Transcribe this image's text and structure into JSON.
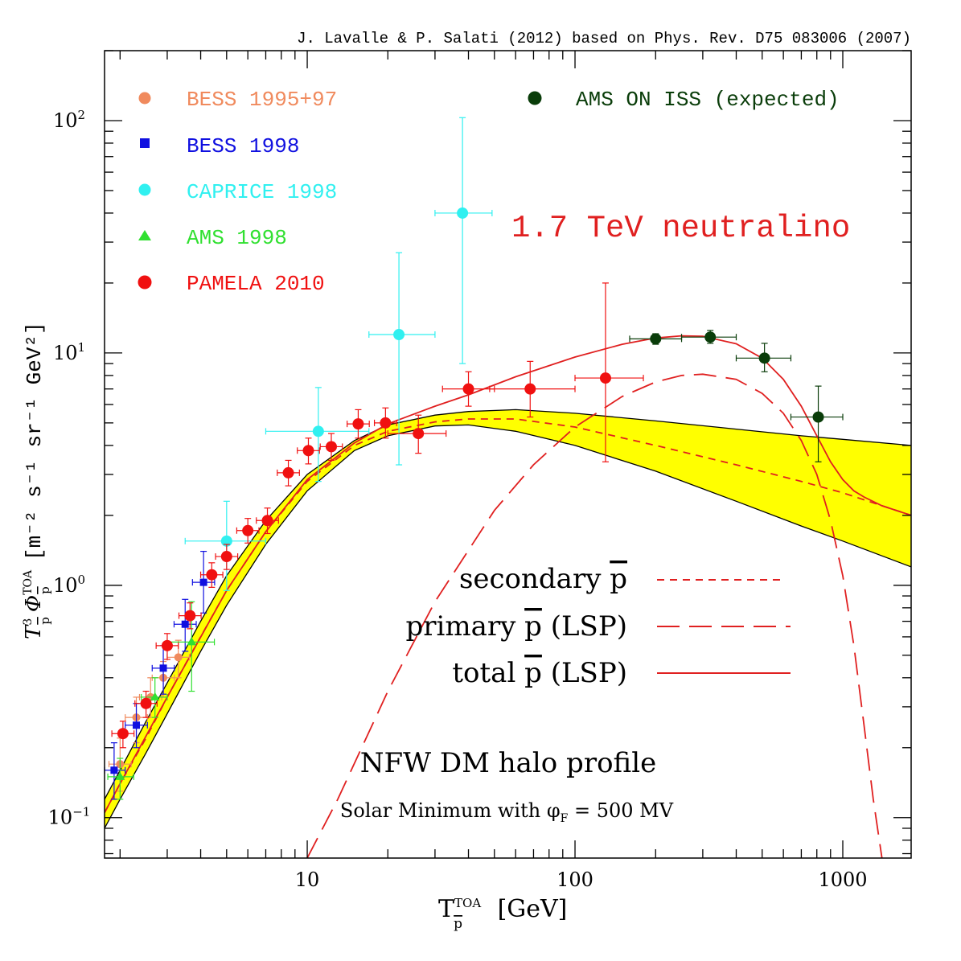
{
  "chart_data": {
    "type": "scatter",
    "citation": "J. Lavalle & P. Salati (2012) based on Phys. Rev. D75 083006 (2007)",
    "annotation_model": "1.7 TeV neutralino",
    "annotation_halo": "NFW DM halo profile",
    "annotation_solar": "Solar Minimum with φ",
    "annotation_solar_sub": "F",
    "annotation_solar_value": "= 500 MV",
    "xlabel": "[GeV]",
    "xlabel_symbol": "T",
    "xlabel_sup": "TOA",
    "xlabel_sub": "p",
    "ylabel": "[m⁻² s⁻¹ sr⁻¹ GeV²]",
    "ylabel_symbol": "T",
    "ylabel_sup": "3",
    "ylabel_sub": "p",
    "ylabel_phi": "Φ",
    "ylabel_phi_sup": "TOA",
    "ylabel_phi_sub": "p",
    "x_scale": "log",
    "y_scale": "log",
    "xlim": [
      1.75,
      1800
    ],
    "ylim": [
      0.067,
      200
    ],
    "x_tick_labels": [
      {
        "value": 10,
        "label": "10"
      },
      {
        "value": 100,
        "label": "100"
      },
      {
        "value": 1000,
        "label": "1000"
      }
    ],
    "y_tick_labels": [
      {
        "value": 0.1,
        "base": "10",
        "exp": "−1"
      },
      {
        "value": 1,
        "base": "10",
        "exp": "0"
      },
      {
        "value": 10,
        "base": "10",
        "exp": "1"
      },
      {
        "value": 100,
        "base": "10",
        "exp": "2"
      }
    ],
    "legend_position": "top-left and top-right",
    "line_legend": [
      {
        "label": "secondary",
        "suffix": "",
        "style": "short-dash"
      },
      {
        "label": "primary",
        "suffix": "(LSP)",
        "style": "long-dash"
      },
      {
        "label": "total",
        "suffix": "(LSP)",
        "style": "solid"
      }
    ],
    "line_legend_pbar": "p",
    "datasets": [
      {
        "name": "BESS 1995+97",
        "color": "#f08a5d",
        "marker": "circle",
        "points": [
          {
            "x": 2.0,
            "y": 0.17,
            "ylo": 0.13,
            "yhi": 0.22
          },
          {
            "x": 2.3,
            "y": 0.27,
            "ylo": 0.21,
            "yhi": 0.33
          },
          {
            "x": 2.6,
            "y": 0.33,
            "ylo": 0.27,
            "yhi": 0.4
          },
          {
            "x": 2.9,
            "y": 0.4,
            "ylo": 0.33,
            "yhi": 0.47
          },
          {
            "x": 3.3,
            "y": 0.49,
            "ylo": 0.4,
            "yhi": 0.58
          }
        ]
      },
      {
        "name": "BESS 1998",
        "color": "#1010e0",
        "marker": "square",
        "points": [
          {
            "x": 1.9,
            "y": 0.16,
            "ylo": 0.12,
            "yhi": 0.21
          },
          {
            "x": 2.3,
            "y": 0.25,
            "ylo": 0.2,
            "yhi": 0.31
          },
          {
            "x": 2.9,
            "y": 0.44,
            "ylo": 0.34,
            "yhi": 0.55
          },
          {
            "x": 3.5,
            "y": 0.68,
            "ylo": 0.52,
            "yhi": 0.87
          },
          {
            "x": 4.1,
            "y": 1.03,
            "ylo": 0.76,
            "yhi": 1.4
          }
        ]
      },
      {
        "name": "CAPRICE 1998",
        "color": "#30f0f0",
        "marker": "circle",
        "points": [
          {
            "x": 5.0,
            "y": 1.55,
            "ylo": 0.95,
            "yhi": 2.3,
            "xlo": 3.5,
            "xhi": 7.0
          },
          {
            "x": 11.0,
            "y": 4.6,
            "ylo": 2.8,
            "yhi": 7.1,
            "xlo": 7.0,
            "xhi": 17.0
          },
          {
            "x": 22.0,
            "y": 12.0,
            "ylo": 3.3,
            "yhi": 27.0,
            "xlo": 17.0,
            "xhi": 30.0
          },
          {
            "x": 38.0,
            "y": 40.0,
            "ylo": 9.0,
            "yhi": 103.0,
            "xlo": 30.0,
            "xhi": 49.0
          }
        ]
      },
      {
        "name": "AMS 1998",
        "color": "#30e030",
        "marker": "triangle",
        "points": [
          {
            "x": 2.0,
            "y": 0.15,
            "ylo": 0.12,
            "yhi": 0.18,
            "xlo": 1.8,
            "xhi": 2.25
          },
          {
            "x": 2.7,
            "y": 0.33,
            "ylo": 0.27,
            "yhi": 0.4,
            "xlo": 2.4,
            "xhi": 3.0
          },
          {
            "x": 3.7,
            "y": 0.57,
            "ylo": 0.35,
            "yhi": 0.85,
            "xlo": 3.0,
            "xhi": 4.5
          }
        ]
      },
      {
        "name": "PAMELA 2010",
        "color": "#f01010",
        "marker": "circle",
        "points": [
          {
            "x": 2.05,
            "y": 0.23,
            "ylo": 0.2,
            "yhi": 0.26
          },
          {
            "x": 2.5,
            "y": 0.31,
            "ylo": 0.27,
            "yhi": 0.35
          },
          {
            "x": 3.0,
            "y": 0.55,
            "ylo": 0.48,
            "yhi": 0.62
          },
          {
            "x": 3.65,
            "y": 0.74,
            "ylo": 0.65,
            "yhi": 0.84
          },
          {
            "x": 4.4,
            "y": 1.11,
            "ylo": 0.98,
            "yhi": 1.25
          },
          {
            "x": 5.0,
            "y": 1.33,
            "ylo": 1.17,
            "yhi": 1.5
          },
          {
            "x": 6.0,
            "y": 1.72,
            "ylo": 1.52,
            "yhi": 1.94
          },
          {
            "x": 7.1,
            "y": 1.9,
            "ylo": 1.67,
            "yhi": 2.15
          },
          {
            "x": 8.5,
            "y": 3.05,
            "ylo": 2.68,
            "yhi": 3.45
          },
          {
            "x": 10.1,
            "y": 3.8,
            "ylo": 3.33,
            "yhi": 4.3
          },
          {
            "x": 12.3,
            "y": 3.95,
            "ylo": 3.45,
            "yhi": 4.5
          },
          {
            "x": 15.5,
            "y": 4.95,
            "ylo": 4.3,
            "yhi": 5.7
          },
          {
            "x": 19.6,
            "y": 5.0,
            "ylo": 4.3,
            "yhi": 5.8
          },
          {
            "x": 26.0,
            "y": 4.5,
            "ylo": 3.7,
            "yhi": 5.4,
            "xlo": 20.0,
            "xhi": 33.0
          },
          {
            "x": 40.0,
            "y": 7.0,
            "ylo": 5.9,
            "yhi": 8.3,
            "xlo": 32.0,
            "xhi": 50.0
          },
          {
            "x": 68.0,
            "y": 7.0,
            "ylo": 5.3,
            "yhi": 9.2,
            "xlo": 48.0,
            "xhi": 100.0
          },
          {
            "x": 130.0,
            "y": 7.8,
            "ylo": 3.4,
            "yhi": 20.0,
            "xlo": 100.0,
            "xhi": 180.0
          }
        ]
      },
      {
        "name": "AMS ON ISS (expected)",
        "color": "#0a3d0a",
        "marker": "circle",
        "points": [
          {
            "x": 200.0,
            "y": 11.5,
            "ylo": 10.9,
            "yhi": 12.1,
            "xlo": 160.0,
            "xhi": 250.0
          },
          {
            "x": 320.0,
            "y": 11.7,
            "ylo": 11.0,
            "yhi": 12.5,
            "xlo": 250.0,
            "xhi": 400.0
          },
          {
            "x": 510.0,
            "y": 9.5,
            "ylo": 8.3,
            "yhi": 11.0,
            "xlo": 400.0,
            "xhi": 640.0
          },
          {
            "x": 810.0,
            "y": 5.3,
            "ylo": 3.4,
            "yhi": 7.2,
            "xlo": 640.0,
            "xhi": 1000.0
          }
        ]
      }
    ],
    "curves": {
      "band_upper": {
        "x": [
          1.75,
          2,
          2.5,
          3,
          4,
          5,
          7,
          10,
          15,
          20,
          30,
          40,
          60,
          100,
          200,
          400,
          700,
          1000,
          1800
        ],
        "y": [
          0.12,
          0.16,
          0.26,
          0.38,
          0.7,
          1.1,
          1.9,
          3.0,
          4.2,
          4.9,
          5.4,
          5.6,
          5.7,
          5.5,
          5.1,
          4.7,
          4.4,
          4.25,
          4.0
        ]
      },
      "band_lower": {
        "x": [
          1.75,
          2,
          2.5,
          3,
          4,
          5,
          7,
          10,
          15,
          20,
          30,
          40,
          60,
          100,
          200,
          400,
          700,
          1000,
          1800
        ],
        "y": [
          0.09,
          0.12,
          0.19,
          0.28,
          0.52,
          0.82,
          1.5,
          2.55,
          3.8,
          4.4,
          4.85,
          4.9,
          4.6,
          4.0,
          3.1,
          2.3,
          1.8,
          1.55,
          1.2
        ]
      },
      "secondary": {
        "x": [
          1.75,
          2,
          2.5,
          3,
          4,
          5,
          7,
          10,
          15,
          20,
          30,
          40,
          60,
          100,
          200,
          400,
          700,
          1000,
          1800
        ],
        "y": [
          0.105,
          0.14,
          0.22,
          0.33,
          0.6,
          0.95,
          1.7,
          2.8,
          4.0,
          4.6,
          5.05,
          5.2,
          5.2,
          4.8,
          4.0,
          3.3,
          2.8,
          2.5,
          2.0
        ]
      },
      "primary": {
        "x": [
          10,
          13,
          20,
          30,
          50,
          70,
          100,
          150,
          200,
          250,
          300,
          400,
          500,
          600,
          700,
          800,
          900,
          1000,
          1100,
          1200,
          1300,
          1400
        ],
        "y": [
          0.067,
          0.12,
          0.35,
          0.85,
          2.1,
          3.3,
          4.8,
          6.5,
          7.5,
          8.0,
          8.1,
          7.7,
          6.7,
          5.5,
          4.2,
          3.0,
          1.9,
          1.1,
          0.55,
          0.25,
          0.12,
          0.067
        ]
      },
      "total": {
        "x": [
          1.75,
          2,
          3,
          5,
          7,
          10,
          15,
          20,
          30,
          40,
          60,
          100,
          150,
          200,
          250,
          300,
          400,
          500,
          600,
          700,
          800,
          900,
          1000,
          1100,
          1200,
          1400,
          1800
        ],
        "y": [
          0.105,
          0.14,
          0.33,
          0.95,
          1.7,
          2.85,
          4.1,
          4.95,
          5.9,
          6.6,
          7.9,
          9.6,
          10.9,
          11.6,
          11.85,
          11.8,
          10.95,
          9.5,
          7.7,
          5.9,
          4.4,
          3.4,
          2.85,
          2.55,
          2.4,
          2.2,
          2.0
        ]
      }
    }
  }
}
